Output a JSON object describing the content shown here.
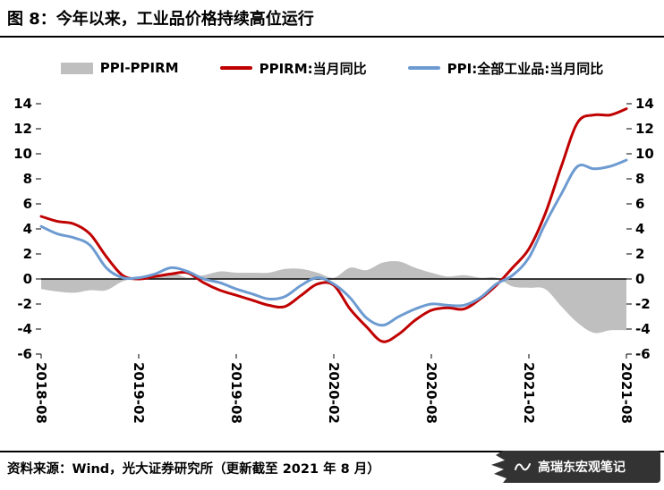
{
  "title": "图 8：今年以来，工业品价格持续高位运行",
  "legend": {
    "items": [
      {
        "label": "PPI-PPIRM",
        "color": "#BFBFBF",
        "marker": "area"
      },
      {
        "label": "PPIRM:当月同比",
        "color": "#C00000",
        "marker": "line"
      },
      {
        "label": "PPI:全部工业品:当月同比",
        "color": "#6D9BD1",
        "marker": "line"
      }
    ]
  },
  "footer": {
    "source_text": "资料来源：Wind，光大证券研究所（更新截至 2021 年 8 月）"
  },
  "watermark": {
    "text": "高瑞东宏观笔记",
    "icon": "wave-logo-icon"
  },
  "chart_data": {
    "type": "combo",
    "title": "图 8：今年以来，工业品价格持续高位运行",
    "xlabel": "",
    "ylabel": "",
    "ylim": [
      -6,
      14
    ],
    "ytick_step": 2,
    "yticks": [
      14,
      12,
      10,
      8,
      6,
      4,
      2,
      0,
      -2,
      -4,
      -6
    ],
    "grid": false,
    "zero_line": true,
    "legend_position": "top",
    "x": [
      "2018-08",
      "2018-09",
      "2018-10",
      "2018-11",
      "2018-12",
      "2019-01",
      "2019-02",
      "2019-03",
      "2019-04",
      "2019-05",
      "2019-06",
      "2019-07",
      "2019-08",
      "2019-09",
      "2019-10",
      "2019-11",
      "2019-12",
      "2020-01",
      "2020-02",
      "2020-03",
      "2020-04",
      "2020-05",
      "2020-06",
      "2020-07",
      "2020-08",
      "2020-09",
      "2020-10",
      "2020-11",
      "2020-12",
      "2021-01",
      "2021-02",
      "2021-03",
      "2021-04",
      "2021-05",
      "2021-06",
      "2021-07",
      "2021-08"
    ],
    "xticks": [
      {
        "i": 0,
        "label": "2018-08"
      },
      {
        "i": 6,
        "label": "2019-02"
      },
      {
        "i": 12,
        "label": "2019-08"
      },
      {
        "i": 18,
        "label": "2020-02"
      },
      {
        "i": 24,
        "label": "2020-08"
      },
      {
        "i": 30,
        "label": "2021-02"
      },
      {
        "i": 36,
        "label": "2021-08"
      }
    ],
    "series": [
      {
        "id": "ppi-ppirm-spread-area",
        "name": "PPI-PPIRM",
        "type": "area",
        "color": "#BFBFBF",
        "values": [
          -0.8,
          -1.0,
          -1.1,
          -0.9,
          -0.9,
          -0.2,
          0.1,
          0.2,
          0.5,
          0.1,
          0.3,
          0.6,
          0.5,
          0.5,
          0.5,
          0.8,
          0.8,
          0.5,
          0.1,
          0.9,
          0.7,
          1.3,
          1.4,
          0.9,
          0.5,
          0.2,
          0.3,
          0.1,
          0.1,
          -0.6,
          -0.7,
          -0.8,
          -2.2,
          -3.5,
          -4.3,
          -4.1,
          -4.1
        ]
      },
      {
        "id": "ppirm-line",
        "name": "PPIRM:当月同比",
        "type": "line",
        "color": "#C00000",
        "values": [
          5.0,
          4.6,
          4.4,
          3.6,
          1.8,
          0.3,
          0.0,
          0.2,
          0.4,
          0.5,
          -0.3,
          -0.9,
          -1.3,
          -1.7,
          -2.1,
          -2.2,
          -1.3,
          -0.4,
          -0.5,
          -2.4,
          -3.8,
          -5.0,
          -4.4,
          -3.3,
          -2.5,
          -2.3,
          -2.4,
          -1.6,
          -0.5,
          0.9,
          2.4,
          5.2,
          9.0,
          12.5,
          13.1,
          13.1,
          13.6
        ]
      },
      {
        "id": "ppi-line",
        "name": "PPI:全部工业品:当月同比",
        "type": "line",
        "color": "#6D9BD1",
        "values": [
          4.2,
          3.6,
          3.3,
          2.7,
          0.9,
          0.1,
          0.1,
          0.4,
          0.9,
          0.6,
          0.0,
          -0.3,
          -0.8,
          -1.2,
          -1.6,
          -1.4,
          -0.5,
          0.1,
          -0.4,
          -1.5,
          -3.1,
          -3.7,
          -3.0,
          -2.4,
          -2.0,
          -2.1,
          -2.1,
          -1.5,
          -0.4,
          0.3,
          1.7,
          4.4,
          6.8,
          9.0,
          8.8,
          9.0,
          9.5
        ]
      }
    ]
  }
}
